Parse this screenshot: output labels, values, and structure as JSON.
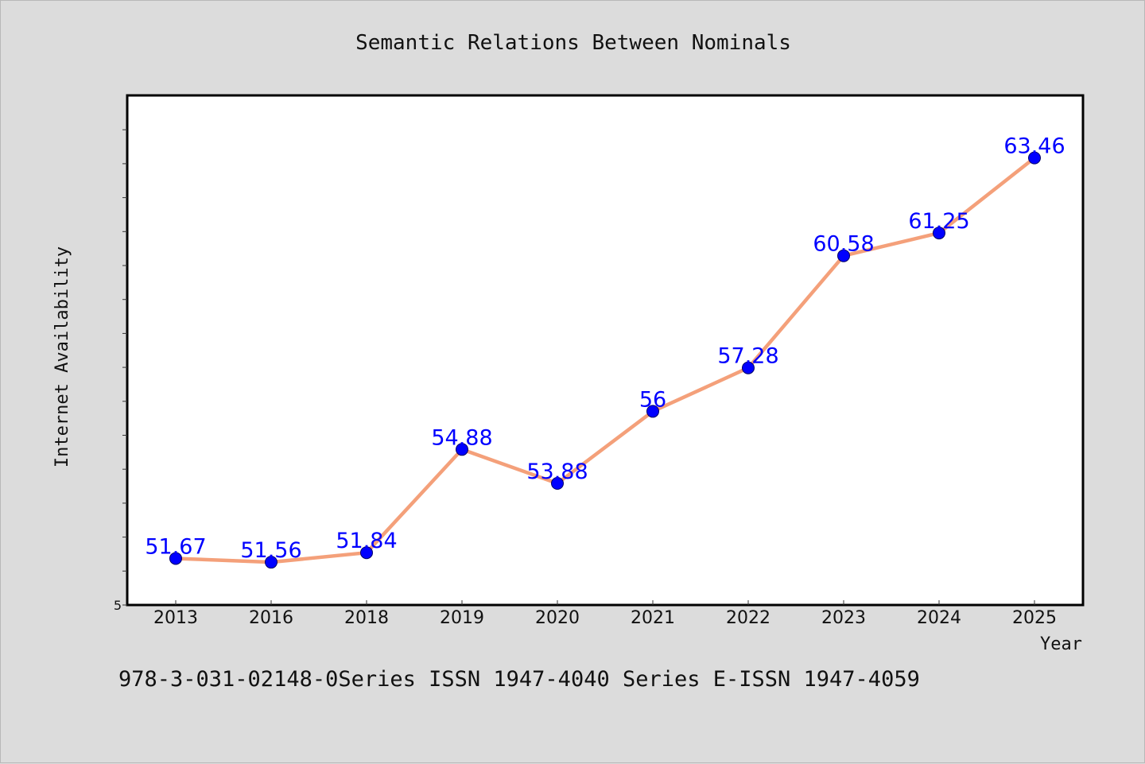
{
  "footnote": "978-3-031-02148-0Series ISSN 1947-4040 Series E-ISSN 1947-4059",
  "colors": {
    "background": "#dcdcdc",
    "plot_background": "#ffffff",
    "line": "#f4a07a",
    "marker": "#0000ff",
    "data_label": "#0000ff"
  },
  "chart_data": {
    "type": "line",
    "title": "Semantic Relations Between Nominals",
    "xlabel": "Year",
    "ylabel": "Internet Availability",
    "categories": [
      "2013",
      "2016",
      "2018",
      "2019",
      "2020",
      "2021",
      "2022",
      "2023",
      "2024",
      "2025"
    ],
    "series": [
      {
        "values": [
          51.67,
          51.56,
          51.84,
          54.88,
          53.88,
          56,
          57.28,
          60.58,
          61.25,
          63.46
        ],
        "data_labels": [
          "51.67",
          "51.56",
          "51.84",
          "54.88",
          "53.88",
          "56",
          "57.28",
          "60.58",
          "61.25",
          "63.46"
        ],
        "marker": "circle"
      }
    ],
    "y_tick_labels": [
      "5"
    ],
    "ylim": [
      50.3,
      65.3
    ],
    "grid": false,
    "legend": "none"
  }
}
